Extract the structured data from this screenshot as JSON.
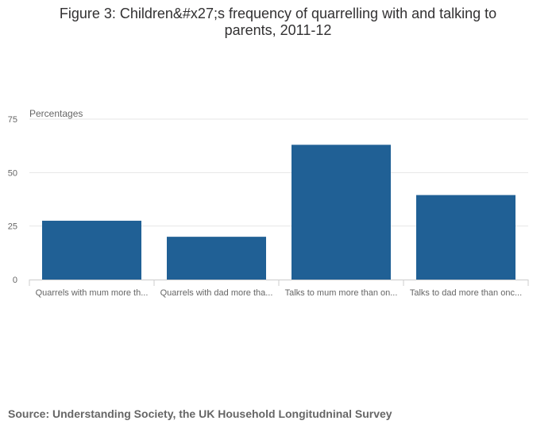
{
  "chart_data": {
    "type": "bar",
    "title": "Figure 3: Children&#x27;s frequency of quarrelling with and talking to parents, 2011-12",
    "ylabel": "Percentages",
    "xlabel": "",
    "categories": [
      "Quarrels with mum more th...",
      "Quarrels with dad more tha...",
      "Talks to mum more than on...",
      "Talks to dad more than onc..."
    ],
    "values": [
      27.5,
      20,
      63,
      39.5
    ],
    "ylim": [
      0,
      75
    ],
    "yticks": [
      0,
      25,
      50,
      75
    ],
    "grid": true,
    "bar_color": "#206095"
  },
  "source": "Source: Understanding Society, the UK Household Longitudninal Survey"
}
